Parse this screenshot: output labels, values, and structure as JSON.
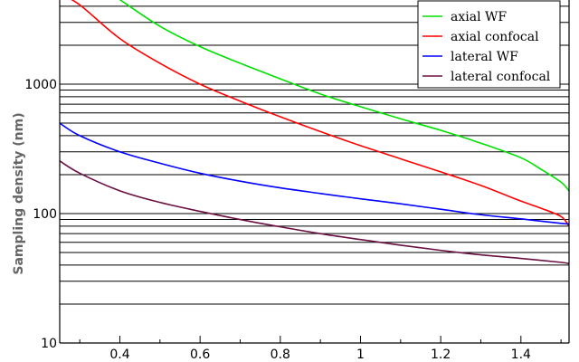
{
  "chart_data": {
    "type": "line",
    "title": "",
    "xlabel": "",
    "ylabel": "Sampling density (nm)",
    "yscale": "log",
    "xlim": [
      0.25,
      1.52
    ],
    "ylim": [
      10,
      5000
    ],
    "grid": "horizontal",
    "legend_position": "top-right",
    "x_ticks": [
      "0.4",
      "0.6",
      "0.8",
      "1",
      "1.2",
      "1.4"
    ],
    "y_ticks": [
      "10",
      "100",
      "1000"
    ],
    "series": [
      {
        "name": "axial WF",
        "color": "#00e000",
        "x": [
          0.4,
          0.5,
          0.6,
          0.7,
          0.8,
          0.9,
          1.0,
          1.1,
          1.2,
          1.3,
          1.4,
          1.45,
          1.5,
          1.52
        ],
        "y": [
          4500,
          2800,
          1950,
          1450,
          1100,
          840,
          670,
          540,
          440,
          350,
          270,
          220,
          175,
          150
        ]
      },
      {
        "name": "axial confocal",
        "color": "#ff0000",
        "x": [
          0.25,
          0.3,
          0.4,
          0.5,
          0.6,
          0.7,
          0.8,
          0.9,
          1.0,
          1.1,
          1.2,
          1.3,
          1.4,
          1.45,
          1.5,
          1.52
        ],
        "y": [
          5000,
          4100,
          2250,
          1450,
          1000,
          740,
          560,
          430,
          335,
          265,
          210,
          165,
          125,
          110,
          95,
          80
        ]
      },
      {
        "name": "lateral WF",
        "color": "#0000ff",
        "x": [
          0.25,
          0.3,
          0.4,
          0.5,
          0.6,
          0.7,
          0.8,
          0.9,
          1.0,
          1.1,
          1.2,
          1.3,
          1.4,
          1.5,
          1.52
        ],
        "y": [
          500,
          400,
          300,
          245,
          205,
          178,
          158,
          143,
          130,
          119,
          108,
          98,
          91,
          84,
          83
        ]
      },
      {
        "name": "lateral confocal",
        "color": "#6a1040",
        "x": [
          0.25,
          0.3,
          0.4,
          0.5,
          0.6,
          0.7,
          0.8,
          0.9,
          1.0,
          1.1,
          1.2,
          1.3,
          1.4,
          1.5,
          1.52
        ],
        "y": [
          255,
          205,
          150,
          122,
          104,
          90,
          79,
          70,
          63,
          57,
          52,
          48,
          45,
          42,
          41
        ]
      }
    ]
  }
}
